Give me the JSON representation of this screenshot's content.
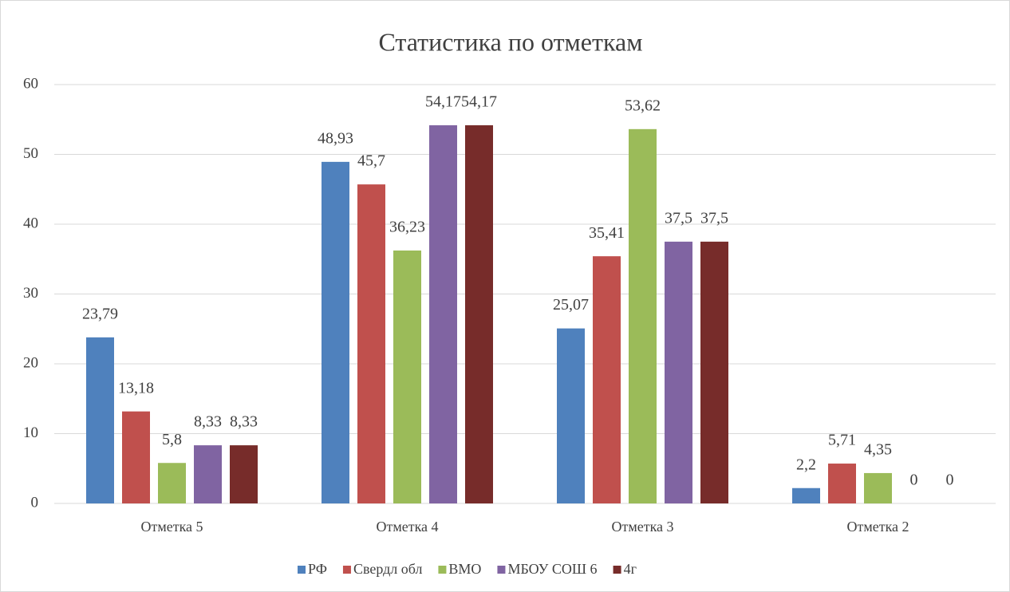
{
  "chart_data": {
    "type": "bar",
    "title": "Статистика по отметкам",
    "categories": [
      "Отметка 5",
      "Отметка 4",
      "Отметка 3",
      "Отметка 2"
    ],
    "series": [
      {
        "name": "РФ",
        "color": "#4f81bd",
        "values": [
          23.79,
          48.93,
          25.07,
          2.2
        ],
        "value_labels": [
          "23,79",
          "48,93",
          "25,07",
          "2,2"
        ]
      },
      {
        "name": "Свердл обл",
        "color": "#c0504d",
        "values": [
          13.18,
          45.7,
          35.41,
          5.71
        ],
        "value_labels": [
          "13,18",
          "45,7",
          "35,41",
          "5,71"
        ]
      },
      {
        "name": "ВМО",
        "color": "#9bbb59",
        "values": [
          5.8,
          36.23,
          53.62,
          4.35
        ],
        "value_labels": [
          "5,8",
          "36,23",
          "53,62",
          "4,35"
        ]
      },
      {
        "name": "МБОУ СОШ 6",
        "color": "#8064a2",
        "values": [
          8.33,
          54.17,
          37.5,
          0
        ],
        "value_labels": [
          "8,33",
          "54,17",
          "37,5",
          "0"
        ]
      },
      {
        "name": "4г",
        "color": "#772c2a",
        "values": [
          8.33,
          54.17,
          37.5,
          0
        ],
        "value_labels": [
          "8,33",
          "54,17",
          "37,5",
          "0"
        ]
      }
    ],
    "ylim": [
      0,
      60
    ],
    "yticks": [
      0,
      10,
      20,
      30,
      40,
      50,
      60
    ],
    "grid": true,
    "legend": "bottom"
  }
}
